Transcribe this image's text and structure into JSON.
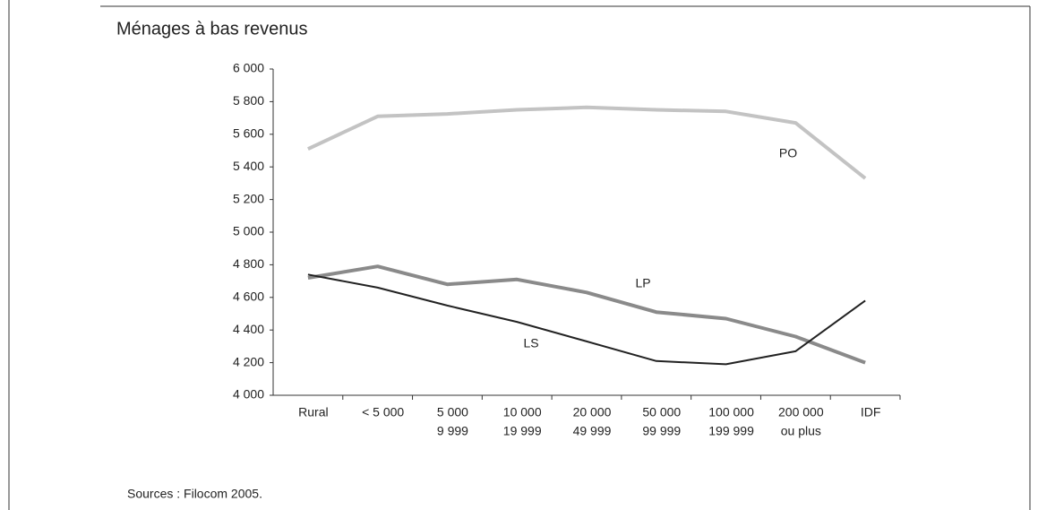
{
  "chart_data": {
    "type": "line",
    "title": "Ménages à bas revenus",
    "source": "Sources : Filocom 2005.",
    "categories": [
      [
        "Rural"
      ],
      [
        "< 5 000"
      ],
      [
        "5 000",
        "9 999"
      ],
      [
        "10 000",
        "19 999"
      ],
      [
        "20 000",
        "49 999"
      ],
      [
        "50 000",
        "99 999"
      ],
      [
        "100 000",
        "199 999"
      ],
      [
        "200 000",
        "ou plus"
      ],
      [
        "IDF"
      ]
    ],
    "series": [
      {
        "name": "PO",
        "color": "#c3c3c3",
        "values": [
          5510,
          5710,
          5725,
          5750,
          5765,
          5750,
          5740,
          5670,
          5330
        ]
      },
      {
        "name": "LP",
        "color": "#8a8a8a",
        "values": [
          4720,
          4790,
          4680,
          4710,
          4630,
          4510,
          4470,
          4360,
          4200
        ]
      },
      {
        "name": "LS",
        "color": "#222222",
        "values": [
          4740,
          4660,
          4550,
          4450,
          4330,
          4210,
          4190,
          4270,
          4580
        ]
      }
    ],
    "ylim": [
      4000,
      6000
    ],
    "yticks": [
      {
        "value": 4000,
        "label": "4 000"
      },
      {
        "value": 4200,
        "label": "4 200"
      },
      {
        "value": 4400,
        "label": "4 400"
      },
      {
        "value": 4600,
        "label": "4 600"
      },
      {
        "value": 4800,
        "label": "4 800"
      },
      {
        "value": 5000,
        "label": "5 000"
      },
      {
        "value": 5200,
        "label": "5 200"
      },
      {
        "value": 5400,
        "label": "5 400"
      },
      {
        "value": 5600,
        "label": "5 600"
      },
      {
        "value": 5800,
        "label": "5 800"
      },
      {
        "value": 6000,
        "label": "6 000"
      }
    ],
    "grid": false
  }
}
